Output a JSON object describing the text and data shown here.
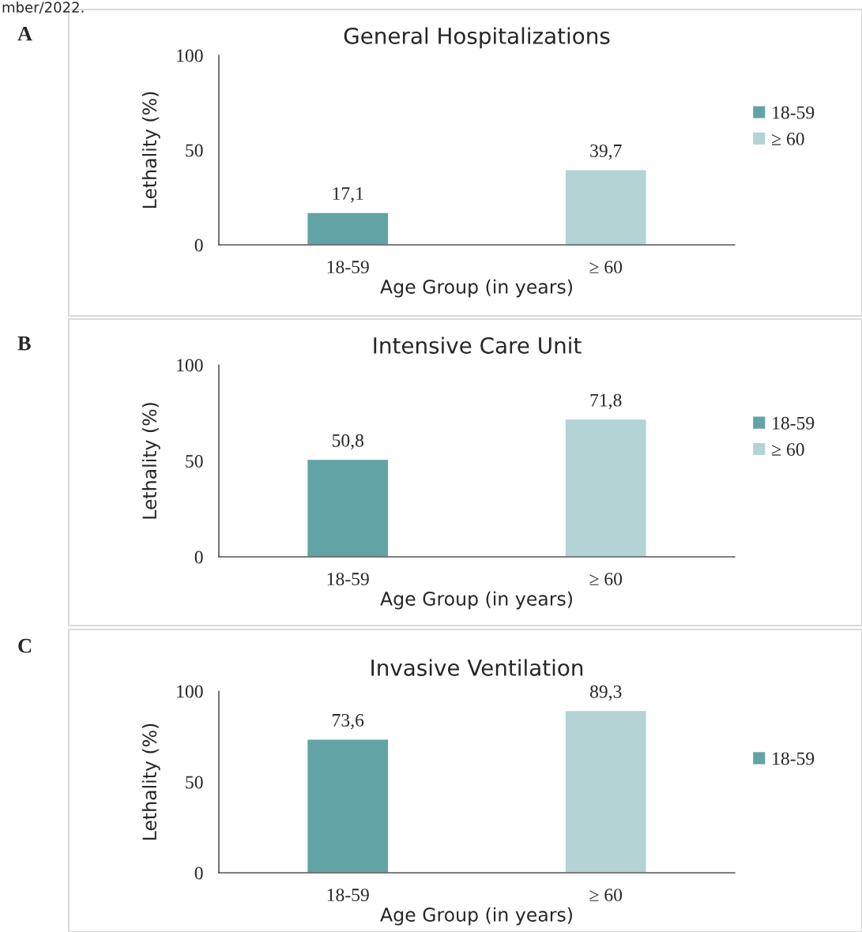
{
  "chart_data": [
    {
      "type": "bar",
      "title": "General Hospitalizations",
      "xlabel": "Age Group (in years)",
      "ylabel": "Lethality (%)",
      "categories": [
        "18-59",
        "≥ 60"
      ],
      "series": [
        {
          "name": "18-59",
          "color": "#62a3a6",
          "values": [
            17.1,
            null
          ],
          "value_labels": [
            "17,1",
            null
          ]
        },
        {
          "name": "≥ 60",
          "color": "#b3d3d5",
          "values": [
            null,
            39.7
          ],
          "value_labels": [
            null,
            "39,7"
          ]
        }
      ],
      "ylim": [
        0,
        100
      ],
      "yticks": [
        0,
        50,
        100
      ],
      "grid": false,
      "legend": "right",
      "annotations": [
        "mber/2022.",
        "A"
      ]
    },
    {
      "type": "bar",
      "title": "Intensive Care Unit",
      "xlabel": "Age Group (in years)",
      "ylabel": "Lethality (%)",
      "categories": [
        "18-59",
        "≥ 60"
      ],
      "series": [
        {
          "name": "18-59",
          "color": "#62a3a6",
          "values": [
            50.8,
            null
          ],
          "value_labels": [
            "50,8",
            null
          ]
        },
        {
          "name": "≥ 60",
          "color": "#b3d3d5",
          "values": [
            null,
            71.8
          ],
          "value_labels": [
            null,
            "71,8"
          ]
        }
      ],
      "ylim": [
        0,
        100
      ],
      "yticks": [
        0,
        50,
        100
      ],
      "grid": false,
      "legend": "right",
      "annotations": [
        "B"
      ]
    },
    {
      "type": "bar",
      "title": "Invasive Ventilation",
      "xlabel": "Age Group (in years)",
      "ylabel": "Lethality (%)",
      "categories": [
        "18-59",
        "≥ 60"
      ],
      "series": [
        {
          "name": "18-59",
          "color": "#62a3a6",
          "values": [
            73.6,
            null
          ],
          "value_labels": [
            "73,6",
            null
          ]
        },
        {
          "color": "#b3d3d5",
          "values": [
            null,
            89.3
          ],
          "value_labels": [
            null,
            "89,3"
          ]
        }
      ],
      "ylim": [
        0,
        100
      ],
      "yticks": [
        0,
        50,
        100
      ],
      "grid": false,
      "legend": "right",
      "annotations": [
        "C"
      ]
    }
  ]
}
